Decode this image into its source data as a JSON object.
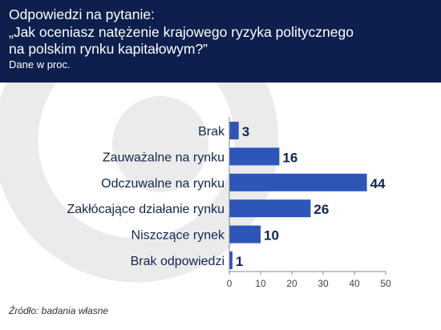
{
  "header": {
    "title_lines": [
      "Odpowiedzi na pytanie:",
      "„Jak oceniasz natężenie krajowego ryzyka politycznego",
      "na polskim rynku kapitałowym?”"
    ],
    "note": "Dane w proc."
  },
  "source": "Źródło: badania własne",
  "colors": {
    "header_bg": "#0e1f4d",
    "bar": "#2e55b8",
    "label_text": "#13254f",
    "value_text": "#13254f",
    "watermark": "#ebebeb"
  },
  "chart_data": {
    "type": "bar",
    "orientation": "horizontal",
    "categories": [
      "Brak",
      "Zauważalne na rynku",
      "Odczuwalne na rynku",
      "Zakłócające działanie rynku",
      "Niszczące rynek",
      "Brak odpowiedzi"
    ],
    "values": [
      3,
      16,
      44,
      26,
      10,
      1
    ],
    "xlim": [
      0,
      50
    ],
    "xticks": [
      0,
      10,
      20,
      30,
      40,
      50
    ],
    "grid": false,
    "legend": "none"
  }
}
